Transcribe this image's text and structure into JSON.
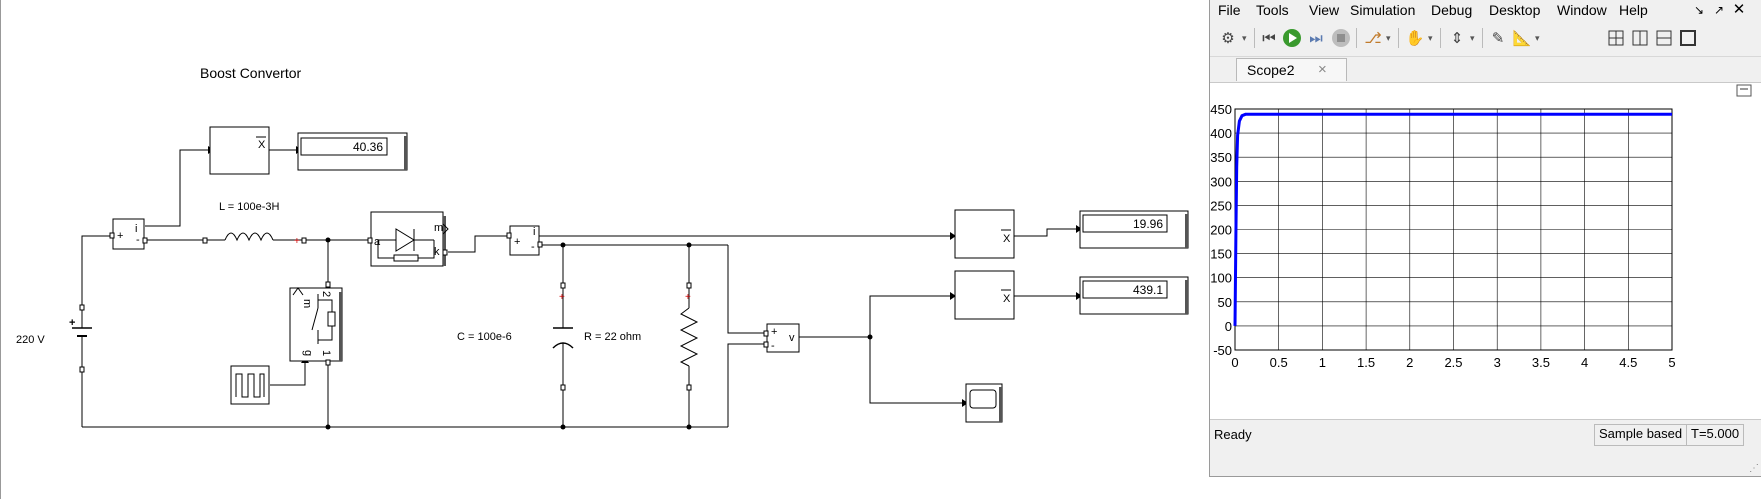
{
  "model": {
    "title": "Boost Convertor",
    "source_label": "220 V",
    "inductor_label": "L = 100e-3H",
    "capacitor_label": "C = 100e-6",
    "resistor_label": "R = 22 ohm",
    "display_input_current": "40.36",
    "display_output_current": "19.96",
    "display_output_voltage": "439.1",
    "current_meter_port": "i",
    "voltage_meter_port": "v",
    "mosfet_ports": {
      "m": "m",
      "g": "g",
      "d": "2",
      "s": "1"
    },
    "diode_port": "m",
    "mean_symbol": "X"
  },
  "scope_window": {
    "menus": [
      "File",
      "Tools",
      "View",
      "Simulation",
      "Debug",
      "Desktop",
      "Window",
      "Help"
    ],
    "tab_label": "Scope2",
    "tab_close": "×",
    "status": "Ready",
    "sample_mode": "Sample based",
    "time_readout": "T=5.000",
    "toolbar_icons": [
      "settings-icon",
      "step-back-icon",
      "run-icon",
      "step-forward-icon",
      "stop-icon",
      "highlight-icon",
      "pan-icon",
      "scale-axes-icon",
      "style-icon",
      "measurements-icon",
      "layout-grid-icon",
      "layout-split-v-icon",
      "layout-split-h-icon",
      "layout-single-icon"
    ]
  },
  "chart_data": {
    "type": "line",
    "title": "",
    "xlabel": "",
    "ylabel": "",
    "xlim": [
      0,
      5
    ],
    "ylim": [
      -50,
      450
    ],
    "xticks": [
      "0",
      "0.5",
      "1",
      "1.5",
      "2",
      "2.5",
      "3",
      "3.5",
      "4",
      "4.5",
      "5"
    ],
    "yticks": [
      "-50",
      "0",
      "50",
      "100",
      "150",
      "200",
      "250",
      "300",
      "350",
      "400",
      "450"
    ],
    "grid": true,
    "color": "#0000ff",
    "series": [
      {
        "x": [
          0,
          0.01,
          0.02,
          0.03,
          0.05,
          0.08,
          0.12,
          0.2,
          0.5,
          1,
          2,
          3,
          4,
          5
        ],
        "y": [
          0,
          190,
          330,
          395,
          425,
          436,
          439,
          439,
          439,
          439,
          439,
          439,
          439,
          439
        ]
      }
    ]
  }
}
